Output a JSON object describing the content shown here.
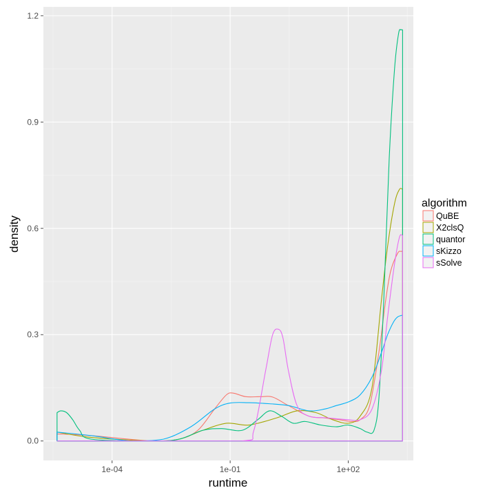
{
  "chart_data": {
    "type": "line",
    "kind": "density",
    "xlabel": "runtime",
    "ylabel": "density",
    "x_scale": "log10",
    "x_ticks": [
      "1e-04",
      "1e-01",
      "1e+02"
    ],
    "x_tick_values": [
      0.0001,
      0.1,
      100
    ],
    "xlim": [
      1.8e-06,
      4500
    ],
    "y_ticks": [
      "0.0",
      "0.3",
      "0.6",
      "0.9",
      "1.2"
    ],
    "y_tick_values": [
      0,
      0.3,
      0.6,
      0.9,
      1.2
    ],
    "ylim": [
      -0.055,
      1.225
    ],
    "grid": true,
    "legend": {
      "title": "algorithm",
      "position": "right",
      "entries": [
        "QuBE",
        "X2clsQ",
        "quantor",
        "sKizzo",
        "sSolve"
      ]
    },
    "series": [
      {
        "name": "QuBE",
        "color": "#F8766D",
        "x": [
          4e-06,
          3e-05,
          0.001,
          0.005,
          0.015,
          0.04,
          0.08,
          0.12,
          0.25,
          0.6,
          1.2,
          3,
          10,
          25,
          60,
          120,
          200,
          350,
          600,
          900,
          1200,
          1800,
          2200,
          2400
        ],
        "y": [
          0.02,
          0.015,
          0.0,
          0.005,
          0.03,
          0.09,
          0.13,
          0.135,
          0.125,
          0.125,
          0.124,
          0.1,
          0.07,
          0.065,
          0.06,
          0.055,
          0.06,
          0.1,
          0.25,
          0.4,
          0.48,
          0.53,
          0.535,
          0.535
        ]
      },
      {
        "name": "X2clsQ",
        "color": "#A3A500",
        "x": [
          4e-06,
          3e-05,
          0.001,
          0.005,
          0.02,
          0.08,
          0.3,
          1.5,
          5,
          15,
          40,
          100,
          200,
          400,
          700,
          1000,
          1500,
          2000,
          2400
        ],
        "y": [
          0.025,
          0.01,
          0.0,
          0.005,
          0.03,
          0.05,
          0.045,
          0.065,
          0.085,
          0.08,
          0.06,
          0.05,
          0.07,
          0.15,
          0.4,
          0.55,
          0.67,
          0.71,
          0.71
        ]
      },
      {
        "name": "quantor",
        "color": "#00BF7D",
        "x": [
          4e-06,
          5e-06,
          7e-06,
          1e-05,
          1.5e-05,
          3e-05,
          0.001,
          0.005,
          0.02,
          0.06,
          0.2,
          0.5,
          1,
          2,
          4,
          8,
          20,
          50,
          100,
          200,
          300,
          450,
          600,
          800,
          1100,
          1500,
          1900,
          2200,
          2400
        ],
        "y": [
          0.08,
          0.085,
          0.08,
          0.06,
          0.03,
          0.005,
          0.0,
          0.005,
          0.03,
          0.035,
          0.03,
          0.06,
          0.085,
          0.07,
          0.05,
          0.055,
          0.045,
          0.04,
          0.045,
          0.035,
          0.025,
          0.03,
          0.12,
          0.4,
          0.8,
          1.05,
          1.15,
          1.16,
          1.16
        ]
      },
      {
        "name": "sKizzo",
        "color": "#00B0F6",
        "x": [
          4e-06,
          3e-05,
          0.0003,
          0.002,
          0.01,
          0.04,
          0.1,
          0.3,
          1,
          3,
          10,
          25,
          50,
          100,
          200,
          400,
          700,
          1000,
          1400,
          1800,
          2400
        ],
        "y": [
          0.025,
          0.015,
          0.0,
          0.005,
          0.04,
          0.09,
          0.107,
          0.108,
          0.105,
          0.1,
          0.085,
          0.09,
          0.1,
          0.11,
          0.13,
          0.18,
          0.25,
          0.3,
          0.335,
          0.35,
          0.355
        ]
      },
      {
        "name": "sSolve",
        "color": "#E76BF3",
        "x": [
          4e-06,
          0.001,
          0.2,
          0.4,
          0.8,
          1.2,
          1.7,
          2.2,
          3,
          5,
          10,
          30,
          100,
          200,
          400,
          700,
          1000,
          1500,
          2000,
          2400
        ],
        "y": [
          0.0,
          0.0,
          0.0,
          0.03,
          0.2,
          0.3,
          0.315,
          0.29,
          0.2,
          0.1,
          0.07,
          0.065,
          0.06,
          0.06,
          0.09,
          0.2,
          0.35,
          0.5,
          0.575,
          0.58
        ]
      }
    ]
  }
}
